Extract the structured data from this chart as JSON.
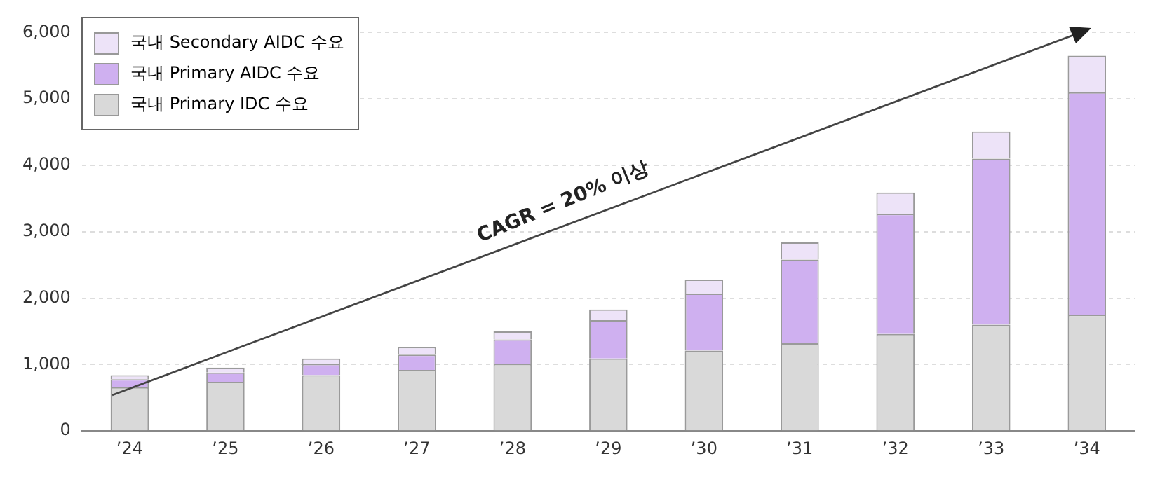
{
  "chart_data": {
    "type": "bar",
    "stacked": true,
    "categories": [
      "’24",
      "’25",
      "’26",
      "’27",
      "’28",
      "’29",
      "’30",
      "’31",
      "’32",
      "’33",
      "’34"
    ],
    "series": [
      {
        "name": "국내 Primary IDC 수요",
        "color": "#d9d9d9",
        "values": [
          660,
          740,
          840,
          920,
          1010,
          1090,
          1210,
          1320,
          1460,
          1600,
          1750
        ]
      },
      {
        "name": "국내 Primary AIDC 수요",
        "color": "#cfb0f0",
        "values": [
          120,
          140,
          170,
          230,
          370,
          580,
          860,
          1260,
          1810,
          2500,
          3350
        ]
      },
      {
        "name": "국내 Secondary AIDC 수요",
        "color": "#ede3f8",
        "values": [
          60,
          75,
          80,
          115,
          120,
          160,
          210,
          260,
          320,
          410,
          550
        ]
      }
    ],
    "ylim": [
      0,
      6000
    ],
    "yticks": [
      {
        "value": 0,
        "label": "0"
      },
      {
        "value": 1000,
        "label": "1,000"
      },
      {
        "value": 2000,
        "label": "2,000"
      },
      {
        "value": 3000,
        "label": "3,000"
      },
      {
        "value": 4000,
        "label": "4,000"
      },
      {
        "value": 5000,
        "label": "5,000"
      },
      {
        "value": 6000,
        "label": "6,000"
      }
    ],
    "grid": "y",
    "legend": "top left",
    "annotations": [
      "CAGR = 20% 이상"
    ]
  }
}
